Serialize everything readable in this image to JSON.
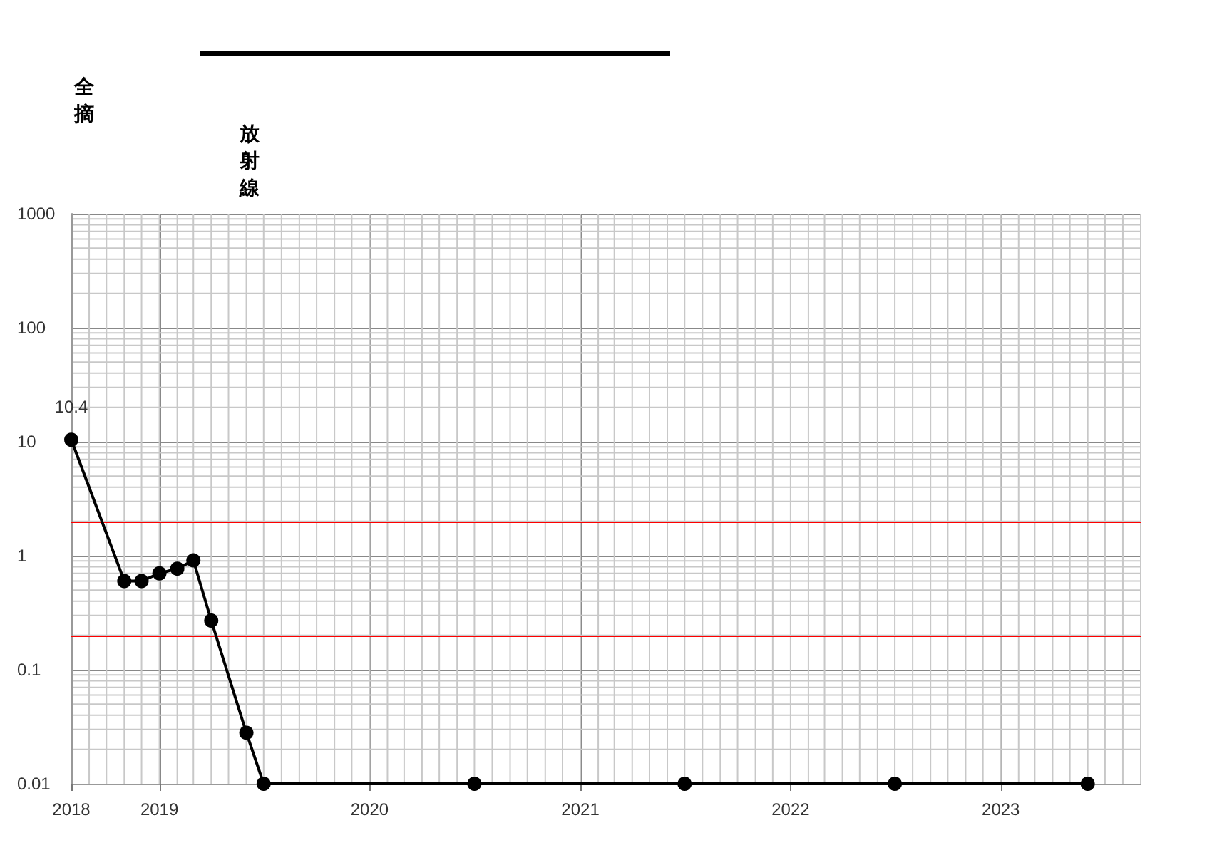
{
  "chart_data": {
    "type": "line",
    "color": "#000000",
    "marker": "circle",
    "log": true,
    "grid": true,
    "x": [
      "2018-08",
      "2018-11",
      "2018-12",
      "2019-01",
      "2019-02",
      "2019-03",
      "2019-04",
      "2019-06",
      "2019-07",
      "2020-07",
      "2021-07",
      "2022-07",
      "2023-06"
    ],
    "values": [
      10.4,
      0.6,
      0.6,
      0.7,
      0.77,
      0.91,
      0.27,
      0.028,
      0.01,
      0.01,
      0.01,
      0.01,
      0.01
    ],
    "value_labels": [
      "10.4",
      null,
      null,
      null,
      null,
      null,
      null,
      null,
      null,
      null,
      null,
      null,
      null
    ],
    "xlim": [
      "2018-08",
      "2023-09"
    ],
    "xticks": [
      {
        "value": "2018-08",
        "label": "2018"
      },
      {
        "value": "2019-01",
        "label": "2019"
      },
      {
        "value": "2020-01",
        "label": "2020"
      },
      {
        "value": "2021-01",
        "label": "2021"
      },
      {
        "value": "2022-01",
        "label": "2022"
      },
      {
        "value": "2023-01",
        "label": "2023"
      }
    ],
    "ylim": [
      0.01,
      1000
    ],
    "yticks": [
      0.01,
      0.1,
      1,
      10,
      100,
      1000
    ],
    "ref_lines": [
      {
        "axis": "y",
        "value": 2,
        "color": "#ff0000"
      },
      {
        "axis": "y",
        "value": 0.2,
        "color": "#ff0000"
      }
    ],
    "annotations": [
      "全摘",
      "放射線"
    ]
  }
}
